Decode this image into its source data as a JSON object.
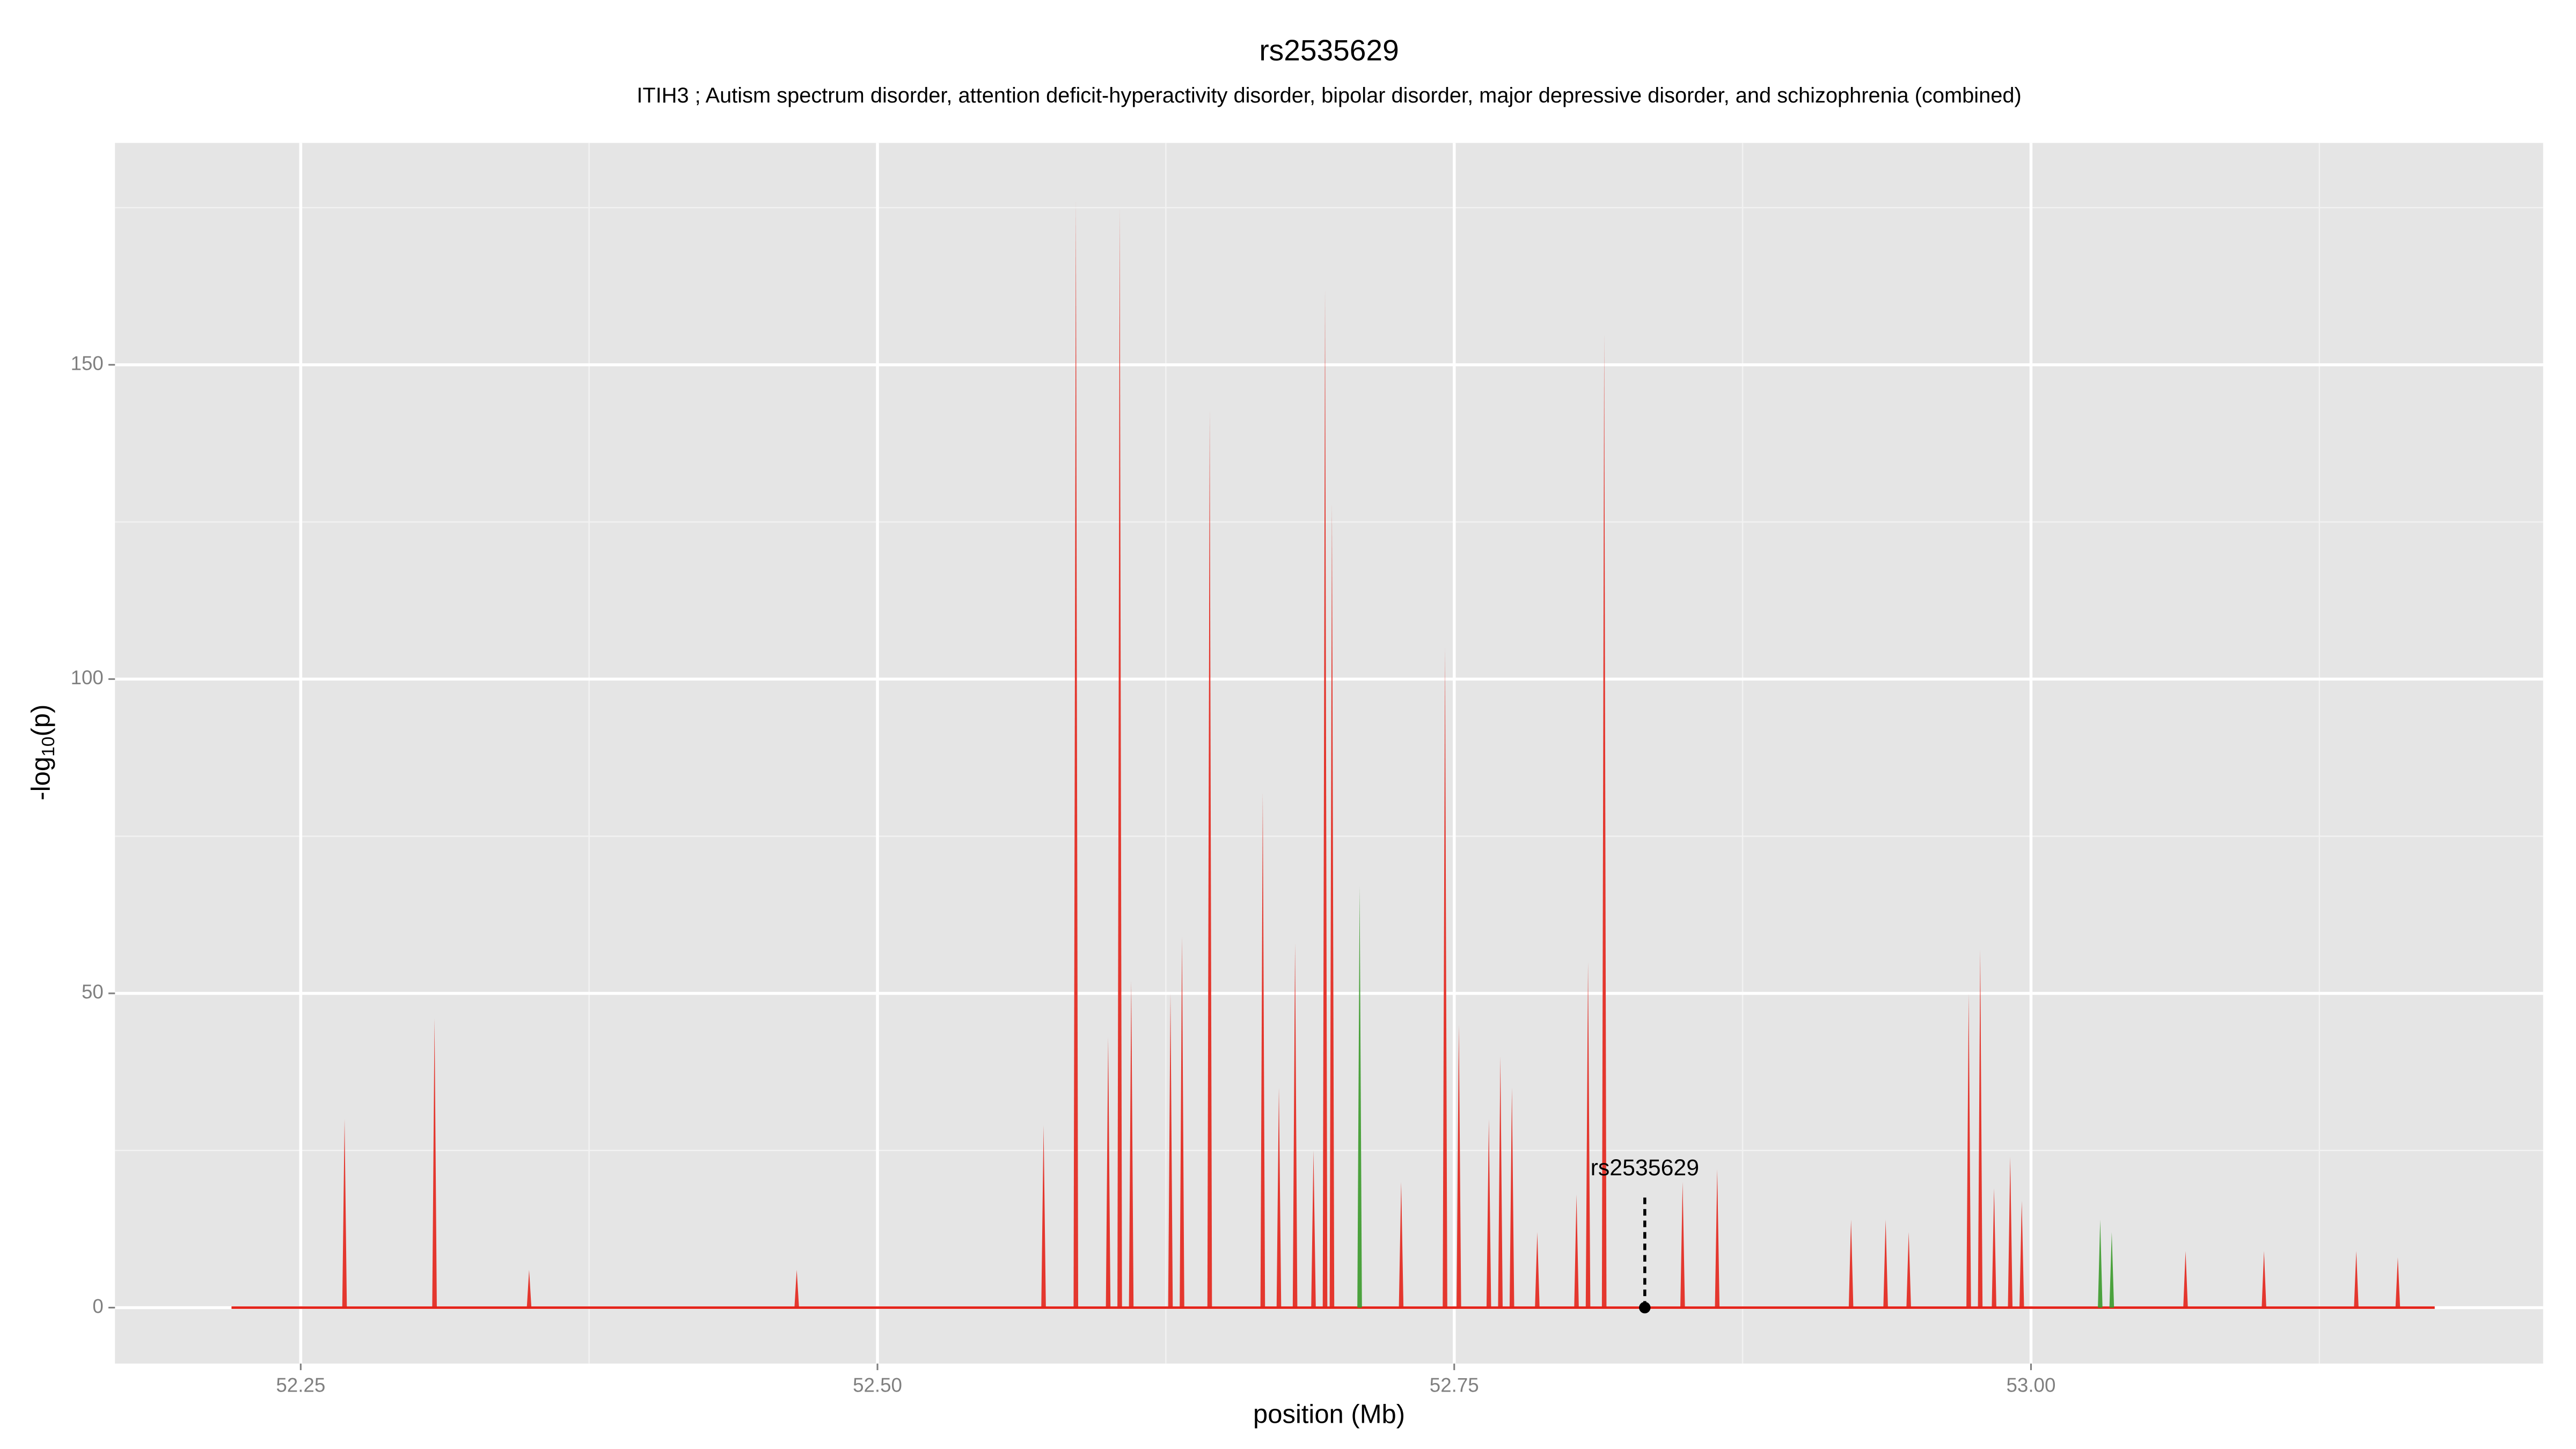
{
  "chart_data": {
    "type": "spike",
    "title": "rs2535629",
    "subtitle": "ITIH3 ; Autism spectrum disorder, attention deficit-hyperactivity disorder, bipolar disorder, major depressive disorder, and schizophrenia (combined)",
    "xlabel": "position (Mb)",
    "ylabel": {
      "prefix": "-log",
      "sub": "10",
      "suffix": "(p)"
    },
    "xlim": [
      52.1695,
      53.222
    ],
    "ylim": [
      -8.9,
      185.3
    ],
    "xticks": [
      {
        "value": 52.25,
        "label": "52.25"
      },
      {
        "value": 52.5,
        "label": "52.50"
      },
      {
        "value": 52.75,
        "label": "52.75"
      },
      {
        "value": 53,
        "label": "53.00"
      }
    ],
    "yticks": [
      0,
      50,
      100,
      150
    ],
    "xminor": [
      52.375,
      52.625,
      52.875,
      53.125
    ],
    "yminor": [
      25,
      75,
      125,
      175
    ],
    "grid": true,
    "baseline": [
      52.22,
      53.175
    ],
    "series": [
      {
        "color": "#e3231a",
        "x": [
          52.269,
          52.308,
          52.349,
          52.465,
          52.572,
          52.586,
          52.6,
          52.605,
          52.61,
          52.627,
          52.632,
          52.644,
          52.667,
          52.674,
          52.681,
          52.689,
          52.694,
          52.697,
          52.727,
          52.746,
          52.752,
          52.765,
          52.77,
          52.775,
          52.786,
          52.803,
          52.808,
          52.815,
          52.849,
          52.864,
          52.922,
          52.937,
          52.947,
          52.973,
          52.978,
          52.984,
          52.991,
          52.996,
          53.067,
          53.101,
          53.141,
          53.159
        ],
        "values": [
          30,
          46,
          6,
          6,
          29,
          176,
          43,
          175,
          52,
          50,
          59,
          143,
          82,
          35,
          58,
          25,
          162,
          128,
          20,
          105,
          45,
          30,
          40,
          35,
          12,
          18,
          55,
          155,
          20,
          22,
          14,
          14,
          12,
          50,
          57,
          19,
          24,
          17,
          9,
          9,
          9,
          8
        ]
      },
      {
        "color": "#3a9a2a",
        "x": [
          52.709,
          53.03,
          53.035
        ],
        "values": [
          67,
          14,
          12
        ]
      }
    ],
    "annotation": {
      "label": "rs2535629",
      "x": 52.8326,
      "y": 0
    }
  }
}
